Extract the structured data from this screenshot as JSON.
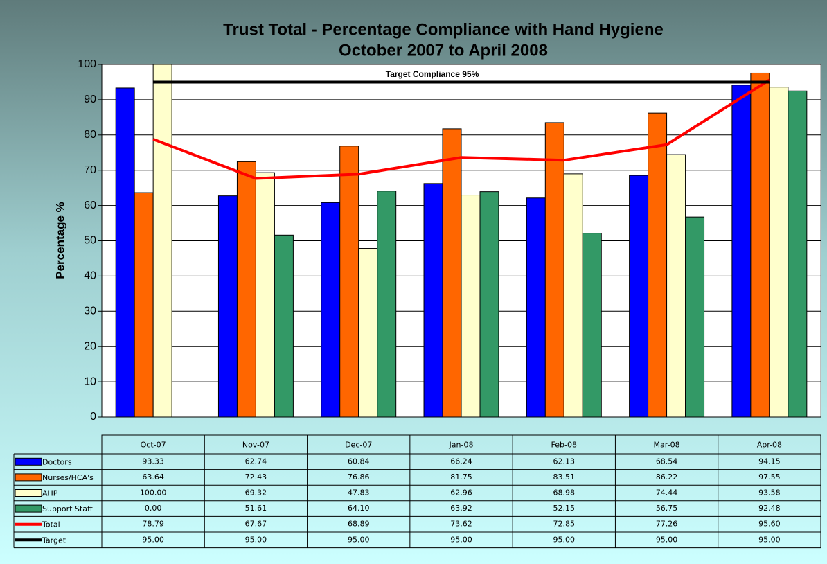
{
  "chart_data": {
    "type": "bar",
    "title": "Trust Total - Percentage Compliance with Hand Hygiene",
    "subtitle": "October 2007 to April 2008",
    "y_label": "Percentage %",
    "annotation": "Target Compliance 95%",
    "categories": [
      "Oct-07",
      "Nov-07",
      "Dec-07",
      "Jan-08",
      "Feb-08",
      "Mar-08",
      "Apr-08"
    ],
    "ylim": [
      0,
      100
    ],
    "yticks": [
      0,
      10,
      20,
      30,
      40,
      50,
      60,
      70,
      80,
      90,
      100
    ],
    "grid": true,
    "series": [
      {
        "name": "Doctors",
        "type": "bar",
        "color": "#0000ff",
        "values": [
          93.33,
          62.74,
          60.84,
          66.24,
          62.13,
          68.54,
          94.15
        ],
        "value_labels": [
          "93.33",
          "62.74",
          "60.84",
          "66.24",
          "62.13",
          "68.54",
          "94.15"
        ]
      },
      {
        "name": "Nurses/HCA's",
        "type": "bar",
        "color": "#ff6600",
        "values": [
          63.64,
          72.43,
          76.86,
          81.75,
          83.51,
          86.22,
          97.55
        ],
        "value_labels": [
          "63.64",
          "72.43",
          "76.86",
          "81.75",
          "83.51",
          "86.22",
          "97.55"
        ]
      },
      {
        "name": "AHP",
        "type": "bar",
        "color": "#ffffcc",
        "values": [
          100,
          69.32,
          47.83,
          62.96,
          68.98,
          74.44,
          93.58
        ],
        "value_labels": [
          "100.00",
          "69.32",
          "47.83",
          "62.96",
          "68.98",
          "74.44",
          "93.58"
        ]
      },
      {
        "name": "Support Staff",
        "type": "bar",
        "color": "#339966",
        "values": [
          0,
          51.61,
          64.1,
          63.92,
          52.15,
          56.75,
          92.48
        ],
        "value_labels": [
          "0.00",
          "51.61",
          "64.10",
          "63.92",
          "52.15",
          "56.75",
          "92.48"
        ]
      },
      {
        "name": "Total",
        "type": "line",
        "color": "#ff0000",
        "values": [
          78.79,
          67.67,
          68.89,
          73.62,
          72.85,
          77.26,
          95.6
        ],
        "value_labels": [
          "78.79",
          "67.67",
          "68.89",
          "73.62",
          "72.85",
          "77.26",
          "95.60"
        ]
      },
      {
        "name": "Target",
        "type": "line",
        "color": "#000000",
        "values": [
          95,
          95,
          95,
          95,
          95,
          95,
          95
        ],
        "value_labels": [
          "95.00",
          "95.00",
          "95.00",
          "95.00",
          "95.00",
          "95.00",
          "95.00"
        ]
      }
    ]
  }
}
